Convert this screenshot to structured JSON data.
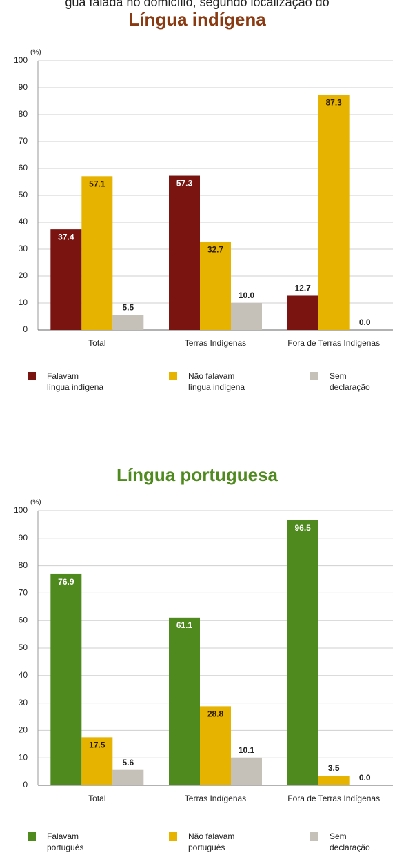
{
  "header_fragment": "gua falada no domicílio, segundo localização do",
  "chart_data": [
    {
      "type": "bar",
      "title": "Língua indígena",
      "y_unit": "(%)",
      "categories": [
        "Total",
        "Terras Indígenas",
        "Fora de Terras Indígenas"
      ],
      "series": [
        {
          "name": "Falavam\nlíngua indígena",
          "color": "#7a1410",
          "values": [
            37.4,
            57.3,
            12.7
          ],
          "value_labels": [
            "37.4",
            "57.3",
            "12.7"
          ]
        },
        {
          "name": "Não falavam\nlíngua indígena",
          "color": "#e6b400",
          "values": [
            57.1,
            32.7,
            87.3
          ],
          "value_labels": [
            "57.1",
            "32.7",
            "87.3"
          ]
        },
        {
          "name": "Sem\ndeclaração",
          "color": "#c6c1b8",
          "values": [
            5.5,
            10.0,
            0.0
          ],
          "value_labels": [
            "5.5",
            "10.0",
            "0.0"
          ]
        }
      ],
      "ylim": [
        0,
        100
      ],
      "yticks": [
        0,
        10,
        20,
        30,
        40,
        50,
        60,
        70,
        80,
        90,
        100
      ],
      "grid": true,
      "title_color": "#8a3a12"
    },
    {
      "type": "bar",
      "title": "Língua portuguesa",
      "y_unit": "(%)",
      "categories": [
        "Total",
        "Terras Indígenas",
        "Fora de Terras Indígenas"
      ],
      "series": [
        {
          "name": "Falavam\nportuguês",
          "color": "#4f8a1e",
          "values": [
            76.9,
            61.1,
            96.5
          ],
          "value_labels": [
            "76.9",
            "61.1",
            "96.5"
          ]
        },
        {
          "name": "Não falavam\nportuguês",
          "color": "#e6b400",
          "values": [
            17.5,
            28.8,
            3.5
          ],
          "value_labels": [
            "17.5",
            "28.8",
            "3.5"
          ]
        },
        {
          "name": "Sem\ndeclaração",
          "color": "#c6c1b8",
          "values": [
            5.6,
            10.1,
            0.0
          ],
          "value_labels": [
            "5.6",
            "10.1",
            "0.0"
          ]
        }
      ],
      "ylim": [
        0,
        100
      ],
      "yticks": [
        0,
        10,
        20,
        30,
        40,
        50,
        60,
        70,
        80,
        90,
        100
      ],
      "grid": true,
      "title_color": "#4f8a1e"
    }
  ]
}
